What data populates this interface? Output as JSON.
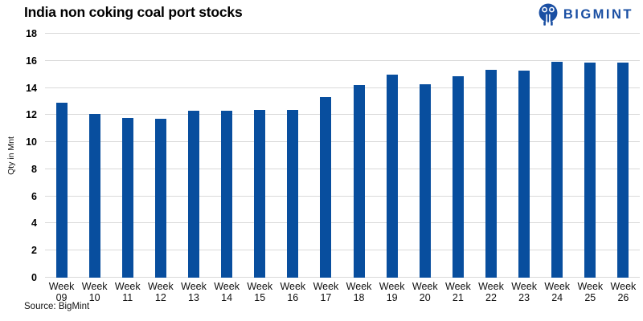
{
  "header": {
    "title": "India non coking coal port stocks",
    "logo_text": "BIGMINT"
  },
  "footer": {
    "source": "Source: BigMint"
  },
  "colors": {
    "bar": "#084e9e",
    "logo": "#1a4fa3",
    "gridline": "#d9d9d9",
    "background": "#ffffff",
    "text": "#000000"
  },
  "chart_data": {
    "type": "bar",
    "title": "India non coking coal port stocks",
    "categories": [
      "Week 09",
      "Week 10",
      "Week 11",
      "Week 12",
      "Week 13",
      "Week 14",
      "Week 15",
      "Week 16",
      "Week 17",
      "Week 18",
      "Week 19",
      "Week 20",
      "Week 21",
      "Week 22",
      "Week 23",
      "Week 24",
      "Week 25",
      "Week 26"
    ],
    "values": [
      12.9,
      12.1,
      11.8,
      11.7,
      12.3,
      12.3,
      12.4,
      12.4,
      13.3,
      14.2,
      15.0,
      14.25,
      14.85,
      15.35,
      15.3,
      15.95,
      15.85,
      15.85
    ],
    "xlabel": "",
    "ylabel": "Qty in Mnt",
    "ylim": [
      0,
      18
    ],
    "yticks": [
      0,
      2,
      4,
      6,
      8,
      10,
      12,
      14,
      16,
      18
    ],
    "grid": true,
    "legend": false
  }
}
